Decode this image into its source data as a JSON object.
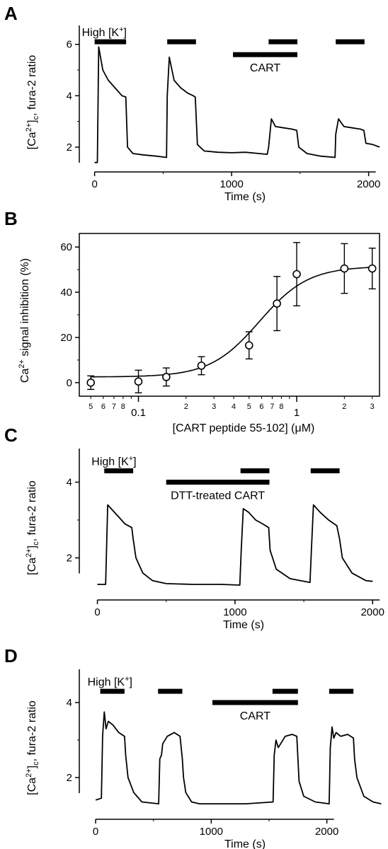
{
  "figure": {
    "panels": [
      "A",
      "B",
      "C",
      "D"
    ]
  },
  "chart_data": [
    {
      "panel": "A",
      "type": "line",
      "xlabel": "Time (s)",
      "ylabel": "[Ca2+]c, fura-2 ratio",
      "xlim": [
        -60,
        2100
      ],
      "ylim": [
        1.2,
        6.9
      ],
      "xticks": [
        0,
        1000,
        2000
      ],
      "yticks": [
        2,
        4,
        6
      ],
      "annotations": [
        {
          "text": "High [K+]",
          "kind": "label"
        },
        {
          "text": "CART",
          "kind": "label"
        }
      ],
      "bars": [
        {
          "group": "High [K+]",
          "x_start": 0,
          "x_end": 230,
          "y": 6.1
        },
        {
          "group": "High [K+]",
          "x_start": 530,
          "x_end": 740,
          "y": 6.1
        },
        {
          "group": "High [K+]",
          "x_start": 1270,
          "x_end": 1480,
          "y": 6.1
        },
        {
          "group": "High [K+]",
          "x_start": 1760,
          "x_end": 1970,
          "y": 6.1
        },
        {
          "group": "CART",
          "x_start": 1010,
          "x_end": 1480,
          "y": 5.6
        }
      ],
      "series": [
        {
          "x": [
            0,
            20,
            30,
            60,
            100,
            150,
            200,
            228,
            240,
            280,
            350,
            450,
            525,
            530,
            545,
            580,
            630,
            680,
            720,
            735,
            750,
            800,
            900,
            1000,
            1100,
            1200,
            1260,
            1270,
            1290,
            1320,
            1380,
            1440,
            1475,
            1490,
            1550,
            1650,
            1755,
            1760,
            1780,
            1820,
            1880,
            1940,
            1965,
            1980,
            2030,
            2080
          ],
          "y": [
            1.4,
            1.4,
            5.9,
            5.0,
            4.6,
            4.3,
            4.0,
            3.95,
            2.0,
            1.75,
            1.7,
            1.65,
            1.6,
            4.0,
            5.5,
            4.6,
            4.3,
            4.1,
            4.0,
            3.95,
            2.1,
            1.85,
            1.8,
            1.78,
            1.8,
            1.75,
            1.72,
            2.0,
            3.1,
            2.8,
            2.75,
            2.7,
            2.65,
            2.0,
            1.75,
            1.65,
            1.6,
            2.5,
            3.1,
            2.8,
            2.75,
            2.7,
            2.65,
            2.15,
            2.1,
            2.0
          ]
        }
      ]
    },
    {
      "panel": "B",
      "type": "scatter",
      "xlabel": "[CART peptide 55-102] (μM)",
      "ylabel": "Ca2+ signal inhibition (%)",
      "xscale": "log",
      "xlim": [
        0.045,
        3.2
      ],
      "ylim": [
        -6,
        66
      ],
      "xticks_major": [
        0.1,
        1
      ],
      "xticks_major_labels": [
        "0.1",
        "1"
      ],
      "xticks_minor": [
        0.05,
        0.06,
        0.07,
        0.08,
        0.2,
        0.3,
        0.4,
        0.5,
        0.6,
        0.7,
        0.8,
        2,
        3
      ],
      "xticks_minor_labels": [
        "5",
        "6",
        "7",
        "8",
        "2",
        "3",
        "4",
        "5",
        "6",
        "7",
        "8",
        "2",
        "3"
      ],
      "xticks_unlabeled": [
        0.09,
        0.9
      ],
      "yticks": [
        0,
        20,
        40,
        60
      ],
      "points": {
        "x": [
          0.05,
          0.1,
          0.15,
          0.25,
          0.5,
          0.75,
          1.0,
          2.0,
          3.0
        ],
        "y": [
          0,
          0.5,
          2.5,
          7.5,
          16.5,
          35,
          48,
          50.5,
          50.5
        ],
        "err": [
          3,
          5,
          4,
          4,
          6,
          12,
          14,
          11,
          9
        ]
      },
      "fit": {
        "bottom": 2.5,
        "top": 51.5,
        "ec50": 0.58,
        "hill": 2.8
      }
    },
    {
      "panel": "C",
      "type": "line",
      "xlabel": "Time (s)",
      "ylabel": "[Ca2+]c, fura-2 ratio",
      "xlim": [
        -80,
        2050
      ],
      "ylim": [
        1.0,
        5.0
      ],
      "xticks": [
        0,
        1000,
        2000
      ],
      "yticks": [
        2,
        4
      ],
      "annotations": [
        {
          "text": "High [K+]",
          "kind": "label"
        },
        {
          "text": "DTT-treated CART",
          "kind": "label"
        }
      ],
      "bars": [
        {
          "group": "High [K+]",
          "x_start": 50,
          "x_end": 260,
          "y": 4.3
        },
        {
          "group": "High [K+]",
          "x_start": 1040,
          "x_end": 1250,
          "y": 4.3
        },
        {
          "group": "High [K+]",
          "x_start": 1550,
          "x_end": 1760,
          "y": 4.3
        },
        {
          "group": "DTT-treated CART",
          "x_start": 500,
          "x_end": 1250,
          "y": 4.0
        }
      ],
      "series": [
        {
          "x": [
            0,
            60,
            75,
            100,
            150,
            200,
            250,
            260,
            280,
            330,
            400,
            500,
            700,
            900,
            1035,
            1045,
            1060,
            1100,
            1150,
            1200,
            1245,
            1255,
            1300,
            1400,
            1545,
            1555,
            1570,
            1620,
            1680,
            1740,
            1760,
            1780,
            1850,
            1950,
            2000
          ],
          "y": [
            1.3,
            1.3,
            3.4,
            3.3,
            3.1,
            2.9,
            2.8,
            2.5,
            2.0,
            1.6,
            1.4,
            1.32,
            1.3,
            1.3,
            1.28,
            2.2,
            3.3,
            3.2,
            3.0,
            2.9,
            2.8,
            2.2,
            1.7,
            1.45,
            1.35,
            2.2,
            3.4,
            3.2,
            3.0,
            2.85,
            2.5,
            2.0,
            1.6,
            1.4,
            1.38
          ]
        }
      ]
    },
    {
      "panel": "D",
      "type": "line",
      "xlabel": "Time (s)",
      "ylabel": "[Ca2+]c, fura-2 ratio",
      "xlim": [
        -80,
        2480
      ],
      "ylim": [
        1.0,
        5.0
      ],
      "xticks": [
        0,
        1000,
        2000
      ],
      "yticks": [
        2,
        4
      ],
      "annotations": [
        {
          "text": "High [K+]",
          "kind": "label"
        },
        {
          "text": "CART",
          "kind": "label"
        }
      ],
      "bars": [
        {
          "group": "High [K+]",
          "x_start": 40,
          "x_end": 250,
          "y": 4.3
        },
        {
          "group": "High [K+]",
          "x_start": 540,
          "x_end": 750,
          "y": 4.3
        },
        {
          "group": "High [K+]",
          "x_start": 1530,
          "x_end": 1750,
          "y": 4.3
        },
        {
          "group": "High [K+]",
          "x_start": 2020,
          "x_end": 2230,
          "y": 4.3
        },
        {
          "group": "CART",
          "x_start": 1010,
          "x_end": 1750,
          "y": 4.0
        }
      ],
      "series": [
        {
          "x": [
            0,
            50,
            60,
            75,
            90,
            110,
            150,
            200,
            250,
            260,
            280,
            330,
            400,
            545,
            555,
            570,
            580,
            620,
            680,
            730,
            750,
            760,
            780,
            830,
            900,
            1100,
            1300,
            1535,
            1545,
            1560,
            1580,
            1600,
            1640,
            1700,
            1740,
            1750,
            1760,
            1800,
            1900,
            2020,
            2030,
            2045,
            2060,
            2080,
            2120,
            2180,
            2230,
            2240,
            2260,
            2320,
            2400,
            2470
          ],
          "y": [
            1.4,
            1.45,
            3.1,
            3.75,
            3.3,
            3.5,
            3.4,
            3.2,
            3.1,
            2.6,
            2.0,
            1.6,
            1.35,
            1.3,
            2.5,
            2.6,
            2.9,
            3.1,
            3.2,
            3.1,
            2.5,
            2.0,
            1.6,
            1.35,
            1.3,
            1.3,
            1.3,
            1.35,
            2.6,
            3.0,
            2.8,
            2.9,
            3.1,
            3.15,
            3.1,
            2.5,
            1.9,
            1.5,
            1.35,
            1.3,
            2.8,
            3.35,
            3.05,
            3.2,
            3.1,
            3.15,
            3.05,
            2.5,
            2.0,
            1.5,
            1.35,
            1.3
          ]
        }
      ]
    }
  ]
}
